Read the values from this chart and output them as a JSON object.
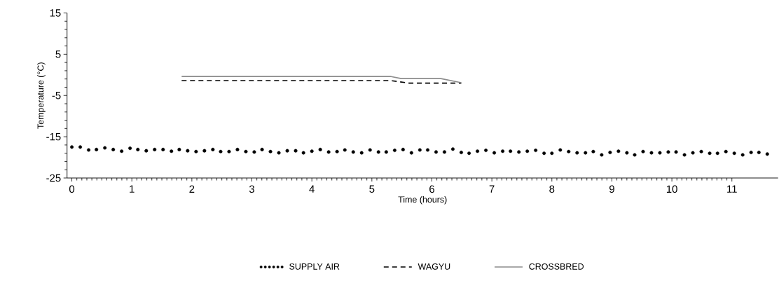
{
  "chart_data": {
    "type": "line",
    "xlabel": "Time (hours)",
    "ylabel": "Temperature (°C)",
    "xlim": [
      -0.08,
      11.77
    ],
    "ylim": [
      -25,
      15
    ],
    "xticks": [
      0,
      1,
      2,
      3,
      4,
      5,
      6,
      7,
      8,
      9,
      10,
      11
    ],
    "yticks": [
      -25,
      -15,
      -5,
      5,
      15
    ],
    "grid": false,
    "legend": "bottom",
    "series": [
      {
        "name": "SUPPLY AIR",
        "type": "scatter",
        "marker": "circle",
        "color": "#000000",
        "x": [
          0,
          0.14,
          0.28,
          0.41,
          0.55,
          0.69,
          0.83,
          0.97,
          1.1,
          1.24,
          1.38,
          1.52,
          1.66,
          1.79,
          1.93,
          2.07,
          2.21,
          2.35,
          2.48,
          2.62,
          2.76,
          2.9,
          3.04,
          3.17,
          3.31,
          3.45,
          3.59,
          3.73,
          3.86,
          4,
          4.14,
          4.28,
          4.42,
          4.55,
          4.69,
          4.83,
          4.97,
          5.11,
          5.24,
          5.38,
          5.52,
          5.66,
          5.8,
          5.93,
          6.07,
          6.21,
          6.35,
          6.49,
          6.62,
          6.76,
          6.9,
          7.04,
          7.18,
          7.31,
          7.45,
          7.59,
          7.73,
          7.87,
          8,
          8.14,
          8.28,
          8.42,
          8.56,
          8.69,
          8.83,
          8.97,
          9.11,
          9.25,
          9.38,
          9.52,
          9.66,
          9.8,
          9.94,
          10.07,
          10.21,
          10.35,
          10.49,
          10.63,
          10.76,
          10.9,
          11.04,
          11.18,
          11.32,
          11.45,
          11.59
        ],
        "values": [
          -17.5,
          -17.5,
          -18.2,
          -18.1,
          -17.7,
          -18.1,
          -18.5,
          -17.8,
          -18.1,
          -18.4,
          -18.1,
          -18.1,
          -18.5,
          -18.1,
          -18.4,
          -18.6,
          -18.4,
          -18.1,
          -18.6,
          -18.6,
          -18.1,
          -18.6,
          -18.7,
          -18.1,
          -18.6,
          -18.9,
          -18.4,
          -18.4,
          -18.9,
          -18.5,
          -18.1,
          -18.7,
          -18.6,
          -18.2,
          -18.7,
          -18.9,
          -18.2,
          -18.7,
          -18.7,
          -18.3,
          -18.1,
          -18.9,
          -18.2,
          -18.2,
          -18.7,
          -18.7,
          -18.0,
          -18.8,
          -19.0,
          -18.5,
          -18.3,
          -18.9,
          -18.5,
          -18.5,
          -18.7,
          -18.5,
          -18.3,
          -19.0,
          -19.0,
          -18.2,
          -18.6,
          -18.9,
          -18.9,
          -18.6,
          -19.4,
          -18.8,
          -18.5,
          -18.9,
          -19.4,
          -18.6,
          -18.9,
          -18.9,
          -18.7,
          -18.7,
          -19.4,
          -18.9,
          -18.6,
          -19.0,
          -19.0,
          -18.6,
          -19.0,
          -19.4,
          -18.8,
          -18.8,
          -19.2
        ]
      },
      {
        "name": "WAGYU",
        "line_style": "dashed",
        "marker": "none",
        "color": "#000000",
        "x": [
          1.83,
          5.32,
          5.62,
          6.49
        ],
        "values": [
          -1.4,
          -1.4,
          -2.0,
          -2.0
        ]
      },
      {
        "name": "CROSSBRED",
        "line_style": "solid",
        "marker": "none",
        "color": "#8c8c8c",
        "x": [
          1.83,
          5.32,
          5.49,
          6.15,
          6.49
        ],
        "values": [
          -0.4,
          -0.4,
          -0.9,
          -0.9,
          -1.9
        ]
      }
    ]
  }
}
